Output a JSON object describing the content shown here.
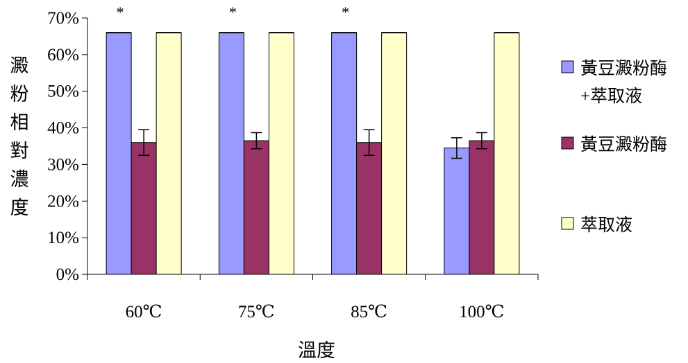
{
  "chart_data": {
    "type": "bar",
    "title": "",
    "xlabel": "溫度",
    "ylabel": "澱粉相對濃度",
    "ylim": [
      0,
      70
    ],
    "y_tick_format": "percent",
    "y_ticks": [
      "0%",
      "10%",
      "20%",
      "30%",
      "40%",
      "50%",
      "60%",
      "70%"
    ],
    "categories": [
      "60℃",
      "75℃",
      "85℃",
      "100℃"
    ],
    "series": [
      {
        "name": "黃豆澱粉酶\n+萃取液",
        "color": "#9999ff",
        "values": [
          66,
          66,
          66,
          34.5
        ],
        "errors": [
          0,
          0,
          0,
          2.8
        ]
      },
      {
        "name": "黃豆澱粉酶",
        "color": "#993366",
        "values": [
          36,
          36.5,
          36,
          36.5
        ],
        "errors": [
          3.5,
          2.2,
          3.5,
          2.2
        ]
      },
      {
        "name": "萃取液",
        "color": "#ffffcc",
        "values": [
          66,
          66,
          66,
          66
        ],
        "errors": [
          0,
          0,
          0,
          0
        ]
      }
    ],
    "annotations": [
      {
        "category": "60℃",
        "text": "*"
      },
      {
        "category": "75℃",
        "text": "*"
      },
      {
        "category": "85℃",
        "text": "*"
      }
    ],
    "grid": false,
    "legend": "right"
  }
}
